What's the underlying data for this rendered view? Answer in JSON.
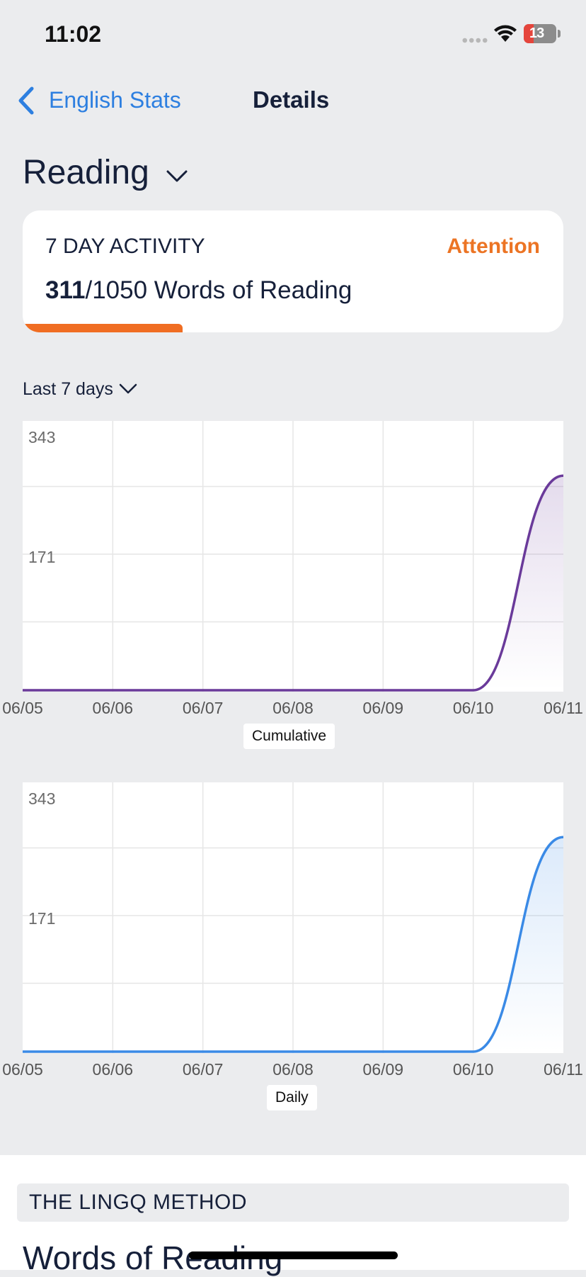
{
  "status_bar": {
    "time": "11:02",
    "battery": "13"
  },
  "nav": {
    "back_label": "English Stats",
    "title": "Details"
  },
  "section": {
    "title": "Reading"
  },
  "activity_card": {
    "label": "7 DAY ACTIVITY",
    "status": "Attention",
    "current": "311",
    "goal_text": "/1050 Words of Reading",
    "progress_fraction": 0.296,
    "progress_color": "#f06d22",
    "status_color": "#ec7424"
  },
  "range": {
    "label": "Last 7 days"
  },
  "chart_data": [
    {
      "type": "area",
      "legend": "Cumulative",
      "color": "#6a3a9a",
      "x": [
        "06/05",
        "06/06",
        "06/07",
        "06/08",
        "06/09",
        "06/10",
        "06/11"
      ],
      "values": [
        0,
        0,
        0,
        0,
        0,
        0,
        311
      ],
      "ylim": [
        0,
        343
      ],
      "y_ticks": [
        "343",
        "171"
      ],
      "grid": true
    },
    {
      "type": "area",
      "legend": "Daily",
      "color": "#3a8ae6",
      "x": [
        "06/05",
        "06/06",
        "06/07",
        "06/08",
        "06/09",
        "06/10",
        "06/11"
      ],
      "values": [
        0,
        0,
        0,
        0,
        0,
        0,
        311
      ],
      "ylim": [
        0,
        343
      ],
      "y_ticks": [
        "343",
        "171"
      ],
      "grid": true
    }
  ],
  "method": {
    "header": "THE LINGQ METHOD",
    "subtitle": "Words of Reading"
  }
}
